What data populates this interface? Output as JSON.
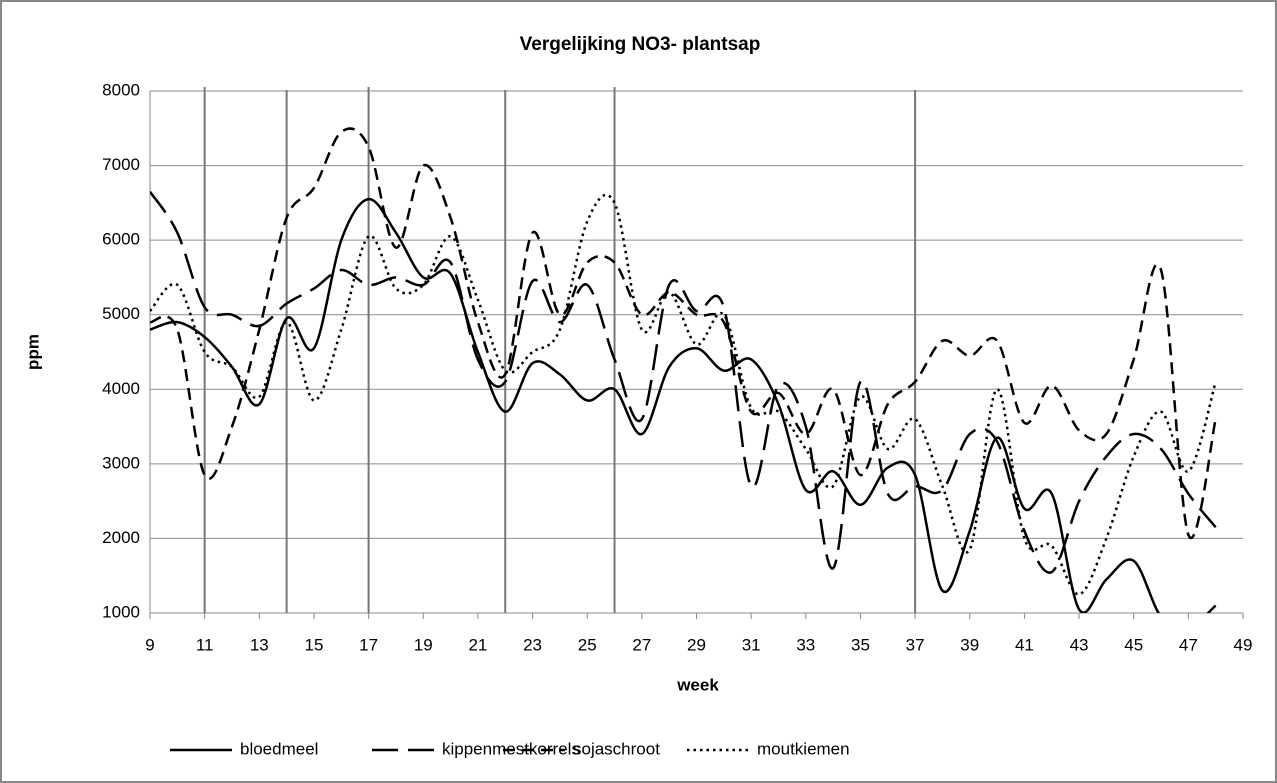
{
  "chart_data": {
    "type": "line",
    "title": "Vergelijking NO3- plantsap",
    "xlabel": "week",
    "ylabel": "ppm",
    "x": [
      9,
      10,
      11,
      12,
      13,
      14,
      15,
      16,
      17,
      18,
      19,
      20,
      21,
      22,
      23,
      24,
      25,
      26,
      27,
      28,
      29,
      30,
      31,
      32,
      33,
      34,
      35,
      36,
      37,
      38,
      39,
      40,
      41,
      42,
      43,
      44,
      45,
      46,
      47,
      48
    ],
    "series": [
      {
        "name": "bloedmeel",
        "color": "#000000",
        "dash": "solid",
        "values": [
          4800,
          4900,
          4700,
          4300,
          3800,
          4950,
          4550,
          6000,
          6550,
          6100,
          5500,
          5550,
          4500,
          3700,
          4350,
          4200,
          3850,
          4000,
          3400,
          4300,
          4550,
          4250,
          4400,
          3800,
          2650,
          2900,
          2450,
          2950,
          2850,
          1300,
          2100,
          3350,
          2400,
          2600,
          1050,
          1450,
          1700,
          950,
          800,
          1100
        ]
      },
      {
        "name": "kippenmestkorrels",
        "color": "#000000",
        "dash": "longdash",
        "values": [
          6650,
          6100,
          5100,
          5000,
          4850,
          5150,
          5350,
          5600,
          5400,
          5500,
          5400,
          5700,
          4400,
          4100,
          5450,
          4900,
          5400,
          4400,
          3600,
          5400,
          5050,
          5100,
          2700,
          4050,
          3500,
          1600,
          4100,
          2600,
          2700,
          2650,
          3400,
          3300,
          2100,
          1550,
          2500,
          3100,
          3400,
          3200,
          2600,
          2150
        ]
      },
      {
        "name": "sojaschroot",
        "color": "#000000",
        "dash": "dash",
        "values": [
          4900,
          4800,
          2850,
          3500,
          4800,
          6300,
          6700,
          7450,
          7250,
          5900,
          7000,
          6300,
          4900,
          4200,
          6100,
          5000,
          5700,
          5700,
          5000,
          5300,
          5000,
          4900,
          3700,
          3950,
          3400,
          4000,
          2850,
          3800,
          4100,
          4650,
          4450,
          4650,
          3550,
          4050,
          3450,
          3400,
          4400,
          5600,
          2050,
          3600
        ]
      },
      {
        "name": "moutkiemen",
        "color": "#000000",
        "dash": "dot",
        "values": [
          5050,
          5400,
          4500,
          4300,
          3900,
          4900,
          3850,
          4800,
          6050,
          5350,
          5400,
          6050,
          5200,
          4250,
          4500,
          4800,
          6250,
          6500,
          4800,
          5300,
          4600,
          5000,
          3750,
          3700,
          3200,
          2700,
          3900,
          3200,
          3600,
          2700,
          1850,
          4000,
          2000,
          1900,
          1250,
          2000,
          3100,
          3700,
          2900,
          4100
        ]
      }
    ],
    "vlines": [
      11,
      14,
      17,
      22,
      26,
      37
    ],
    "xlim": [
      9,
      49
    ],
    "xticks": [
      9,
      11,
      13,
      15,
      17,
      19,
      21,
      23,
      25,
      27,
      29,
      31,
      33,
      35,
      37,
      39,
      41,
      43,
      45,
      47,
      49
    ],
    "ylim": [
      1000,
      8000
    ],
    "yticks": [
      1000,
      2000,
      3000,
      4000,
      5000,
      6000,
      7000,
      8000
    ],
    "grid": true,
    "legend": "bottom"
  }
}
